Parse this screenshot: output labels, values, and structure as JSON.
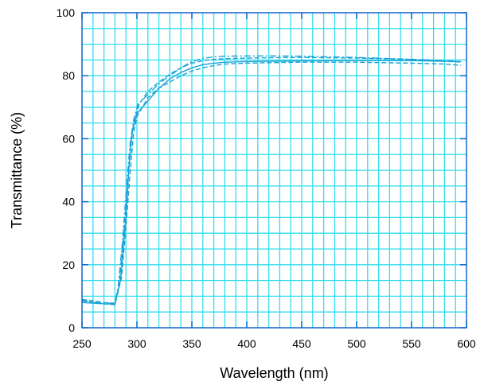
{
  "chart_data": {
    "type": "line",
    "title": "",
    "xlabel": "Wavelength (nm)",
    "ylabel": "Transmittance (%)",
    "xlim": [
      250,
      600
    ],
    "ylim": [
      0,
      100
    ],
    "x_ticks": [
      250,
      300,
      350,
      400,
      450,
      500,
      550,
      600
    ],
    "y_ticks": [
      0,
      20,
      40,
      60,
      80,
      100
    ],
    "x_tick_labels": [
      "250",
      "300",
      "350",
      "400",
      "450",
      "500",
      "550",
      "600"
    ],
    "y_tick_labels": [
      "0",
      "20",
      "40",
      "60",
      "80",
      "100"
    ],
    "grid": true,
    "minor_grid_step": {
      "x": 10,
      "y": 5
    },
    "legend": "none",
    "colors": {
      "grid": "#33ddee",
      "series": "#1aa3d6",
      "frame": "#1166cc"
    },
    "series": [
      {
        "x": [
          250,
          260,
          270,
          280,
          285,
          290,
          293,
          296,
          300,
          310,
          320,
          330,
          340,
          350,
          360,
          370,
          380,
          400,
          420,
          450,
          500,
          550,
          580,
          595
        ],
        "values": [
          8,
          7.8,
          7.6,
          7.5,
          15,
          35,
          52,
          63,
          68,
          72,
          76,
          79,
          81,
          82.5,
          83.5,
          84,
          84.3,
          84.5,
          84.6,
          84.7,
          84.8,
          84.8,
          84.6,
          84.5
        ],
        "style": "solid"
      },
      {
        "x": [
          250,
          260,
          270,
          280,
          284,
          288,
          292,
          295,
          298,
          302,
          310,
          320,
          330,
          340,
          350,
          360,
          370,
          380,
          400,
          420,
          450,
          500,
          550,
          580,
          595
        ],
        "values": [
          9,
          8.5,
          8,
          7.8,
          14,
          30,
          48,
          60,
          66,
          71,
          75,
          78,
          80.5,
          82.5,
          84,
          84.8,
          85.2,
          85.4,
          85.6,
          85.7,
          85.8,
          85.6,
          85.2,
          84.7,
          84.3
        ],
        "style": "dashed"
      },
      {
        "x": [
          250,
          260,
          270,
          280,
          286,
          290,
          294,
          297,
          300,
          305,
          310,
          320,
          330,
          340,
          350,
          360,
          370,
          380,
          400,
          430,
          450,
          500,
          550,
          580,
          595
        ],
        "values": [
          8.5,
          8,
          7.6,
          7.3,
          16,
          32,
          50,
          62,
          67,
          70,
          73,
          76,
          78,
          80,
          81.5,
          82.5,
          83.2,
          83.7,
          84,
          84.2,
          84.3,
          84.3,
          84,
          83.7,
          83.3
        ],
        "style": "dashed"
      },
      {
        "x": [
          250,
          260,
          270,
          280,
          283,
          287,
          291,
          294,
          297,
          301,
          310,
          320,
          330,
          340,
          350,
          360,
          370,
          380,
          400,
          420,
          450,
          500,
          550,
          580,
          595
        ],
        "values": [
          8.8,
          8.2,
          7.9,
          7.6,
          13,
          28,
          47,
          59,
          66,
          71,
          74,
          77.5,
          80,
          82.5,
          84.5,
          85.5,
          86,
          86.2,
          86.3,
          86.3,
          86.2,
          85.8,
          85.2,
          84.8,
          84.5
        ],
        "style": "dash-dot"
      }
    ]
  }
}
